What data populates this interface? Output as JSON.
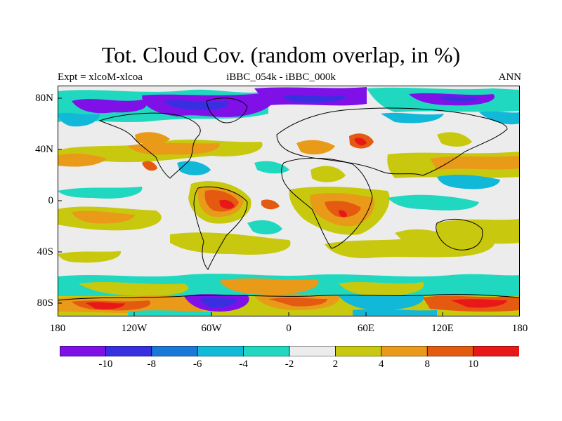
{
  "title": "Tot. Cloud Cov. (random overlap, in %)",
  "subtitle_left": "Expt = xlcoM-xlcoa",
  "subtitle_center": "iBBC_054k - iBBC_000k",
  "subtitle_right": "ANN",
  "lat_ticks": [
    "80N",
    "40N",
    "0",
    "40S",
    "80S"
  ],
  "lon_ticks": [
    "180",
    "120W",
    "60W",
    "0",
    "60E",
    "120E",
    "180"
  ],
  "colorbar": {
    "labels": [
      "-10",
      "-8",
      "-6",
      "-4",
      "-2",
      "2",
      "4",
      "8",
      "10"
    ],
    "colors": [
      "#7f10e8",
      "#3830e0",
      "#1a78d8",
      "#12b8d8",
      "#20d8c0",
      "#ececec",
      "#c8c80e",
      "#e89a18",
      "#e45a10",
      "#e81818"
    ]
  },
  "colors": {
    "land_coast": "#000000",
    "neutral": "#ececec"
  }
}
